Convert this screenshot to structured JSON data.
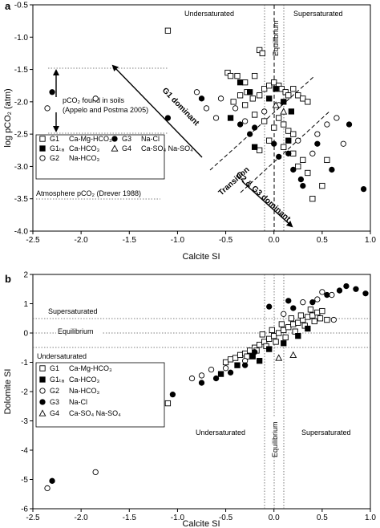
{
  "chart_data": [
    {
      "type": "scatter",
      "panel": "a",
      "xlabel": "Calcite SI",
      "ylabel": "log pCO₂ (atm)",
      "xlim": [
        -2.5,
        1.0
      ],
      "ylim": [
        -4.0,
        -0.5
      ],
      "xticks": [
        "-2.5",
        "-2.0",
        "-1.5",
        "-1.0",
        "-0.5",
        "0.0",
        "0.5",
        "1.0"
      ],
      "yticks": [
        "-4.0",
        "-3.5",
        "-3.0",
        "-2.5",
        "-2.0",
        "-1.5",
        "-1.0",
        "-0.5"
      ],
      "x_tick_values": [
        -2.5,
        -2.0,
        -1.5,
        -1.0,
        -0.5,
        0.0,
        0.5,
        1.0
      ],
      "y_tick_values": [
        -4.0,
        -3.5,
        -3.0,
        -2.5,
        -2.0,
        -1.5,
        -1.0,
        -0.5
      ],
      "region_labels": {
        "left": "Undersaturated",
        "right": "Supersaturated",
        "center": "Equilibrium"
      },
      "annotations": {
        "soil_line1": "pCO₂ found in soils",
        "soil_line2": "(Appelo and Postma 2005)",
        "atmosphere": "Atmosphere pCO₂ (Drever 1988)",
        "g1_dominant": "G1 dominant",
        "transition": "Transition",
        "g2g3_dominant": "G2 & G3 dominant"
      },
      "reference_lines": {
        "vertical_si": [
          -0.1,
          0.0,
          0.1
        ],
        "soil_pco2": [
          -1.5,
          -2.5
        ],
        "atmosphere_pco2": -3.5
      },
      "legend": [
        {
          "code": "G1",
          "name": "Ca-Mg-HCO₃",
          "marker": "open-square"
        },
        {
          "code": "G1ₜₐ",
          "name": "Ca-HCO₃",
          "marker": "filled-square"
        },
        {
          "code": "G2",
          "name": "Na-HCO₃",
          "marker": "open-circle"
        },
        {
          "code": "G3",
          "name": "Na-Cl",
          "marker": "filled-circle"
        },
        {
          "code": "G4",
          "name": "Ca-SO₄ Na-SO₄",
          "marker": "open-triangle"
        }
      ],
      "series": [
        {
          "name": "G1",
          "marker": "open-square",
          "points": [
            [
              -1.1,
              -0.9
            ],
            [
              -0.48,
              -1.55
            ],
            [
              -0.45,
              -1.6
            ],
            [
              -0.38,
              -1.6
            ],
            [
              -0.3,
              -1.7
            ],
            [
              -0.2,
              -1.6
            ],
            [
              -0.15,
              -1.2
            ],
            [
              -0.12,
              -1.25
            ],
            [
              -0.28,
              -1.85
            ],
            [
              -0.35,
              -1.9
            ],
            [
              -0.42,
              -2.0
            ],
            [
              -0.3,
              -2.05
            ],
            [
              -0.22,
              -1.95
            ],
            [
              -0.15,
              -1.9
            ],
            [
              -0.1,
              -1.8
            ],
            [
              -0.05,
              -1.75
            ],
            [
              0.0,
              -1.7
            ],
            [
              0.05,
              -1.75
            ],
            [
              0.08,
              -1.8
            ],
            [
              0.12,
              -1.85
            ],
            [
              0.15,
              -1.9
            ],
            [
              0.2,
              -1.8
            ],
            [
              0.25,
              -1.9
            ],
            [
              0.3,
              -1.95
            ],
            [
              0.35,
              -2.0
            ],
            [
              -0.2,
              -2.2
            ],
            [
              -0.1,
              -2.3
            ],
            [
              0.0,
              -2.4
            ],
            [
              0.05,
              -2.25
            ],
            [
              0.1,
              -2.35
            ],
            [
              0.15,
              -2.45
            ],
            [
              0.2,
              -2.5
            ],
            [
              -0.05,
              -2.6
            ],
            [
              0.1,
              -2.7
            ],
            [
              0.2,
              -2.8
            ],
            [
              0.3,
              -2.9
            ],
            [
              0.25,
              -3.0
            ],
            [
              0.35,
              -3.1
            ],
            [
              0.5,
              -3.3
            ],
            [
              0.55,
              -2.9
            ],
            [
              0.4,
              -3.5
            ],
            [
              -0.15,
              -2.75
            ]
          ]
        },
        {
          "name": "G1ₜₐ",
          "marker": "filled-square",
          "points": [
            [
              -0.35,
              -1.7
            ],
            [
              -0.25,
              -1.85
            ],
            [
              -0.05,
              -1.95
            ],
            [
              0.02,
              -1.8
            ],
            [
              0.1,
              -2.0
            ],
            [
              0.18,
              -2.15
            ],
            [
              -0.45,
              -2.25
            ],
            [
              -0.2,
              -2.7
            ],
            [
              0.15,
              -2.6
            ]
          ]
        },
        {
          "name": "G2",
          "marker": "open-circle",
          "points": [
            [
              -2.35,
              -2.1
            ],
            [
              -1.85,
              -1.95
            ],
            [
              -0.8,
              -1.85
            ],
            [
              -0.7,
              -2.1
            ],
            [
              -0.6,
              -2.25
            ],
            [
              -0.55,
              -1.95
            ],
            [
              -0.4,
              -2.1
            ],
            [
              -0.3,
              -2.3
            ],
            [
              -0.1,
              -2.15
            ],
            [
              0.05,
              -2.05
            ],
            [
              0.25,
              -2.6
            ],
            [
              0.45,
              -2.5
            ],
            [
              0.55,
              -2.35
            ],
            [
              0.65,
              -2.25
            ],
            [
              0.72,
              -2.65
            ],
            [
              0.4,
              -2.8
            ]
          ]
        },
        {
          "name": "G3",
          "marker": "filled-circle",
          "points": [
            [
              -2.3,
              -1.85
            ],
            [
              -1.1,
              -2.25
            ],
            [
              -0.75,
              -1.95
            ],
            [
              -0.35,
              -2.35
            ],
            [
              -0.25,
              -2.5
            ],
            [
              -0.2,
              -2.4
            ],
            [
              0.0,
              -2.65
            ],
            [
              0.05,
              -2.85
            ],
            [
              0.15,
              -2.8
            ],
            [
              0.2,
              -3.05
            ],
            [
              0.28,
              -3.2
            ],
            [
              0.45,
              -2.65
            ],
            [
              0.6,
              -3.05
            ],
            [
              0.78,
              -2.35
            ],
            [
              0.93,
              -3.35
            ],
            [
              0.3,
              -3.3
            ]
          ]
        },
        {
          "name": "G4",
          "marker": "open-triangle",
          "points": [
            [
              0.02,
              -2.05
            ],
            [
              0.1,
              -2.15
            ]
          ]
        }
      ]
    },
    {
      "type": "scatter",
      "panel": "b",
      "xlabel": "Calcite SI",
      "ylabel": "Dolomite SI",
      "xlim": [
        -2.5,
        1.0
      ],
      "ylim": [
        -6,
        2
      ],
      "xticks": [
        "-2.5",
        "-2.0",
        "-1.5",
        "-1.0",
        "-0.5",
        "0.0",
        "0.5",
        "1.0"
      ],
      "yticks": [
        "-6",
        "-5",
        "-4",
        "-3",
        "-2",
        "-1",
        "0",
        "1",
        "2"
      ],
      "x_tick_values": [
        -2.5,
        -2.0,
        -1.5,
        -1.0,
        -0.5,
        0.0,
        0.5,
        1.0
      ],
      "y_tick_values": [
        -6,
        -5,
        -4,
        -3,
        -2,
        -1,
        0,
        1,
        2
      ],
      "region_labels": {
        "top_left": "Supersaturated",
        "equilibrium_h": "Equilibrium",
        "under_left": "Undersaturated",
        "under_center": "Undersaturated",
        "super_right": "Supersaturated",
        "equilibrium_v": "Equilibrium"
      },
      "reference_lines": {
        "horizontal_si": [
          0.5,
          0.0,
          -0.5
        ],
        "vertical_si": [
          -0.1,
          0.0,
          0.1
        ]
      },
      "legend": [
        {
          "code": "G1",
          "name": "Ca-Mg-HCO₃",
          "marker": "open-square"
        },
        {
          "code": "G1ₜₐ",
          "name": "Ca-HCO₃",
          "marker": "filled-square"
        },
        {
          "code": "G2",
          "name": "Na-HCO₃",
          "marker": "open-circle"
        },
        {
          "code": "G3",
          "name": "Na-Cl",
          "marker": "filled-circle"
        },
        {
          "code": "G4",
          "name": "Ca-SO₄ Na-SO₄",
          "marker": "open-triangle"
        }
      ],
      "series": [
        {
          "name": "G1",
          "marker": "open-square",
          "points": [
            [
              -1.1,
              -2.4
            ],
            [
              -0.5,
              -1.0
            ],
            [
              -0.45,
              -0.9
            ],
            [
              -0.4,
              -0.85
            ],
            [
              -0.35,
              -0.75
            ],
            [
              -0.3,
              -0.7
            ],
            [
              -0.25,
              -0.6
            ],
            [
              -0.2,
              -0.5
            ],
            [
              -0.15,
              -0.4
            ],
            [
              -0.1,
              -0.3
            ],
            [
              -0.05,
              -0.2
            ],
            [
              0.0,
              -0.1
            ],
            [
              0.05,
              0.0
            ],
            [
              0.1,
              0.1
            ],
            [
              0.15,
              0.2
            ],
            [
              0.2,
              0.3
            ],
            [
              0.25,
              0.35
            ],
            [
              0.3,
              0.45
            ],
            [
              0.35,
              0.55
            ],
            [
              0.4,
              0.6
            ],
            [
              0.45,
              0.7
            ],
            [
              0.5,
              0.75
            ],
            [
              -0.28,
              -0.8
            ],
            [
              -0.18,
              -0.6
            ],
            [
              -0.08,
              -0.45
            ],
            [
              0.02,
              -0.3
            ],
            [
              0.12,
              -0.15
            ],
            [
              0.22,
              0.05
            ],
            [
              0.32,
              0.25
            ],
            [
              0.42,
              0.4
            ],
            [
              0.28,
              0.6
            ],
            [
              0.18,
              0.5
            ],
            [
              0.08,
              0.3
            ],
            [
              -0.02,
              0.1
            ],
            [
              -0.12,
              -0.05
            ],
            [
              0.38,
              0.8
            ],
            [
              0.48,
              0.5
            ],
            [
              0.55,
              0.45
            ]
          ]
        },
        {
          "name": "G1ₜₐ",
          "marker": "filled-square",
          "points": [
            [
              -0.55,
              -1.4
            ],
            [
              -0.38,
              -1.1
            ],
            [
              -0.22,
              -0.8
            ],
            [
              -0.05,
              -0.55
            ],
            [
              0.1,
              -0.35
            ],
            [
              0.25,
              -0.1
            ],
            [
              0.35,
              0.15
            ],
            [
              -0.15,
              -0.95
            ]
          ]
        },
        {
          "name": "G2",
          "marker": "open-circle",
          "points": [
            [
              -2.35,
              -5.3
            ],
            [
              -1.85,
              -4.75
            ],
            [
              -0.85,
              -1.55
            ],
            [
              -0.75,
              -1.45
            ],
            [
              -0.65,
              -1.25
            ],
            [
              -0.5,
              -1.2
            ],
            [
              -0.3,
              -0.95
            ],
            [
              0.1,
              0.65
            ],
            [
              0.3,
              1.05
            ],
            [
              0.5,
              1.4
            ],
            [
              0.6,
              1.3
            ],
            [
              0.45,
              1.15
            ],
            [
              0.62,
              0.45
            ]
          ]
        },
        {
          "name": "G3",
          "marker": "filled-circle",
          "points": [
            [
              -2.3,
              -5.05
            ],
            [
              -1.05,
              -2.1
            ],
            [
              -0.75,
              -1.7
            ],
            [
              -0.6,
              -1.55
            ],
            [
              -0.45,
              -1.35
            ],
            [
              -0.3,
              -1.1
            ],
            [
              -0.2,
              -0.65
            ],
            [
              -0.05,
              0.9
            ],
            [
              0.2,
              0.85
            ],
            [
              0.4,
              1.05
            ],
            [
              0.55,
              1.3
            ],
            [
              0.68,
              1.45
            ],
            [
              0.75,
              1.6
            ],
            [
              0.85,
              1.5
            ],
            [
              0.95,
              1.35
            ],
            [
              0.15,
              1.1
            ]
          ]
        },
        {
          "name": "G4",
          "marker": "open-triangle",
          "points": [
            [
              0.05,
              -0.85
            ],
            [
              0.2,
              -0.75
            ]
          ]
        }
      ]
    }
  ]
}
